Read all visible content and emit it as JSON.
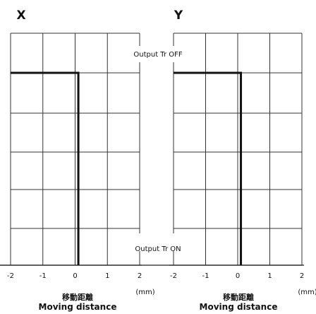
{
  "chart_data": [
    {
      "type": "line",
      "title": "X",
      "xlabel_ja": "移動距離",
      "xlabel": "Moving distance",
      "unit": "(mm)",
      "xlim": [
        -2,
        2
      ],
      "xticks": [
        "-2",
        "-1",
        "0",
        "1",
        "2"
      ],
      "y_states": [
        "Output Tr OFF",
        "Output Tr ON"
      ],
      "grid": true,
      "series": [
        {
          "x": [
            -2,
            0.1,
            0.1
          ],
          "y": [
            1,
            1,
            0
          ]
        }
      ]
    },
    {
      "type": "line",
      "title": "Y",
      "xlabel_ja": "移動距離",
      "xlabel": "Moving distance",
      "unit": "(mm)",
      "xlim": [
        -2,
        2
      ],
      "xticks": [
        "-2",
        "-1",
        "0",
        "1",
        "2"
      ],
      "y_states": [
        "Output Tr OFF",
        "Output Tr ON"
      ],
      "grid": true,
      "series": [
        {
          "x": [
            -2,
            0.1,
            0.1
          ],
          "y": [
            1,
            1,
            0
          ]
        }
      ]
    }
  ]
}
